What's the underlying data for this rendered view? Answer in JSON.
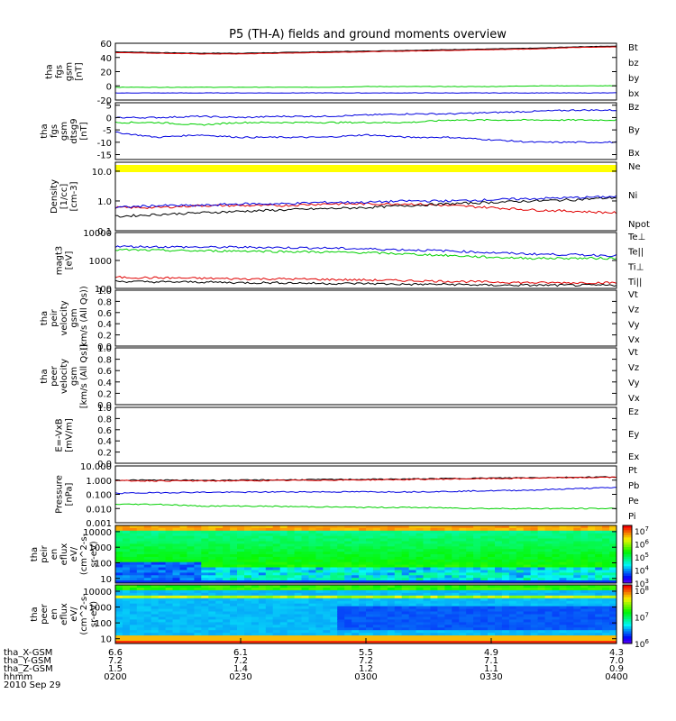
{
  "title": "P5 (TH-A) fields and ground moments overview",
  "colors": {
    "black": "#000000",
    "red": "#e00000",
    "green": "#00d000",
    "blue": "#0000e0",
    "yellow": "#ffff00",
    "white": "#ffffff"
  },
  "time_axis": {
    "ticks": [
      "0200",
      "0230",
      "0300",
      "0330",
      "0400"
    ],
    "rows": [
      {
        "label": "tha_X-GSM",
        "values": [
          "6.6",
          "6.1",
          "5.5",
          "4.9",
          "4.3"
        ]
      },
      {
        "label": "tha_Y-GSM",
        "values": [
          "7.2",
          "7.2",
          "7.2",
          "7.1",
          "7.0"
        ]
      },
      {
        "label": "tha_Z-GSM",
        "values": [
          "1.5",
          "1.4",
          "1.2",
          "1.1",
          "0.9"
        ]
      },
      {
        "label": "hhmm",
        "values": [
          "0200",
          "0230",
          "0300",
          "0330",
          "0400"
        ]
      }
    ],
    "date": "2010 Sep 29"
  },
  "chart_data": [
    {
      "type": "line",
      "ylabel": [
        "tha",
        "fgs",
        "gsm",
        "[nT]"
      ],
      "ylim": [
        -20,
        60
      ],
      "yticks": [
        "60",
        "40",
        "20",
        "0",
        "-20"
      ],
      "x": [
        0,
        10,
        20,
        30,
        40,
        50,
        60,
        70,
        80,
        90,
        100,
        110,
        120
      ],
      "series": [
        {
          "name": "Bt",
          "color": "#000000",
          "values": [
            48,
            47,
            46,
            46,
            47,
            48,
            49,
            50,
            51,
            52,
            53,
            55,
            56
          ]
        },
        {
          "name": "bz",
          "color": "#e00000",
          "values": [
            47,
            46,
            45,
            45,
            46,
            47,
            48,
            49,
            50,
            51,
            52,
            54,
            55
          ]
        },
        {
          "name": "by",
          "color": "#00d000",
          "values": [
            -2,
            -2,
            -2,
            -2,
            -2,
            -2,
            -1,
            -1,
            -1,
            -1,
            0,
            0,
            0
          ]
        },
        {
          "name": "bx",
          "color": "#0000e0",
          "values": [
            -10,
            -10,
            -10,
            -10,
            -10,
            -10,
            -10,
            -10,
            -10,
            -10,
            -10,
            -10,
            -10
          ]
        }
      ]
    },
    {
      "type": "line",
      "ylabel": [
        "tha",
        "fgs",
        "gsm",
        "dtsg9",
        "[nT]"
      ],
      "ylim": [
        -17,
        6
      ],
      "yticks": [
        "5",
        "0",
        "-5",
        "-10",
        "-15"
      ],
      "x": [
        0,
        10,
        20,
        30,
        40,
        50,
        60,
        70,
        80,
        90,
        100,
        110,
        120
      ],
      "series": [
        {
          "name": "Bz",
          "color": "#0000e0",
          "values": [
            0,
            0,
            0.5,
            0,
            0.5,
            0.5,
            1,
            1.5,
            1.5,
            2,
            2.5,
            3,
            3
          ]
        },
        {
          "name": "By",
          "color": "#00d000",
          "values": [
            -2,
            -2,
            -3,
            -2,
            -2,
            -2,
            -2,
            -2,
            -1,
            -1,
            -1,
            -1,
            -1
          ]
        },
        {
          "name": "Bx",
          "color": "#0000e0",
          "values": [
            -6,
            -8,
            -7,
            -8,
            -8,
            -8,
            -7,
            -8,
            -8,
            -9,
            -10,
            -10,
            -10
          ]
        }
      ]
    },
    {
      "type": "line",
      "ylabel": [
        "Density",
        "[1/cc]",
        "[cm-3]"
      ],
      "scale": "log",
      "ylim": [
        0.1,
        20
      ],
      "yticks": [
        "10.0",
        "1.0",
        "0.1"
      ],
      "x": [
        0,
        10,
        20,
        30,
        40,
        50,
        60,
        70,
        80,
        90,
        100,
        110,
        120
      ],
      "series": [
        {
          "name": "Ne",
          "color": "#e00000",
          "values": [
            0.6,
            0.6,
            0.7,
            0.7,
            0.7,
            0.8,
            0.8,
            0.8,
            0.7,
            0.6,
            0.5,
            0.45,
            0.4
          ]
        },
        {
          "name": "Ni",
          "color": "#000000",
          "values": [
            0.3,
            0.35,
            0.4,
            0.45,
            0.5,
            0.55,
            0.6,
            0.7,
            0.8,
            0.9,
            1.0,
            1.1,
            1.3
          ]
        },
        {
          "name": "Npot",
          "color": "#0000e0",
          "values": [
            0.6,
            0.7,
            0.7,
            0.8,
            0.8,
            0.9,
            0.9,
            1.0,
            1.0,
            1.1,
            1.2,
            1.3,
            1.4
          ]
        }
      ]
    },
    {
      "type": "line",
      "ylabel": [
        "magt3",
        "[eV]"
      ],
      "scale": "log",
      "ylim": [
        100,
        10000
      ],
      "yticks": [
        "10000",
        "1000",
        "100"
      ],
      "x": [
        0,
        10,
        20,
        30,
        40,
        50,
        60,
        70,
        80,
        90,
        100,
        110,
        120
      ],
      "series": [
        {
          "name": "Te⊥",
          "color": "#e00000",
          "values": [
            250,
            240,
            230,
            220,
            220,
            210,
            200,
            190,
            180,
            170,
            160,
            160,
            160
          ]
        },
        {
          "name": "Te||",
          "color": "#000000",
          "values": [
            180,
            170,
            170,
            160,
            160,
            150,
            150,
            140,
            140,
            130,
            130,
            130,
            130
          ]
        },
        {
          "name": "Ti⊥",
          "color": "#0000e0",
          "values": [
            3200,
            3100,
            3000,
            3000,
            2900,
            2800,
            2600,
            2400,
            2200,
            1900,
            1700,
            1600,
            1500
          ]
        },
        {
          "name": "Ti||",
          "color": "#00d000",
          "values": [
            2400,
            2300,
            2200,
            2200,
            2100,
            2000,
            1900,
            1700,
            1500,
            1300,
            1200,
            1200,
            1200
          ]
        }
      ]
    },
    {
      "type": "line",
      "ylabel": [
        "tha",
        "peir",
        "velocity",
        "gsm",
        "(km/s (All Qs))"
      ],
      "ylim": [
        0,
        1
      ],
      "yticks": [
        "1.0",
        "0.8",
        "0.6",
        "0.4",
        "0.2",
        "0.0"
      ],
      "series": [
        {
          "name": "Vt",
          "color": "#000000"
        },
        {
          "name": "Vz",
          "color": "#e00000"
        },
        {
          "name": "Vy",
          "color": "#00d000"
        },
        {
          "name": "Vx",
          "color": "#0000e0"
        }
      ]
    },
    {
      "type": "line",
      "ylabel": [
        "tha",
        "peer",
        "velocity",
        "gsm",
        "[km/s (All Qs)]"
      ],
      "ylim": [
        0,
        1
      ],
      "yticks": [
        "1.0",
        "0.8",
        "0.6",
        "0.4",
        "0.2",
        "0.0"
      ],
      "series": [
        {
          "name": "Vt",
          "color": "#000000"
        },
        {
          "name": "Vz",
          "color": "#e00000"
        },
        {
          "name": "Vy",
          "color": "#00d000"
        },
        {
          "name": "Vx",
          "color": "#0000e0"
        }
      ]
    },
    {
      "type": "line",
      "ylabel": [
        "E=-VxB",
        "[mV/m]"
      ],
      "ylim": [
        0,
        1
      ],
      "yticks": [
        "1.0",
        "0.8",
        "0.6",
        "0.4",
        "0.2",
        "0.0"
      ],
      "series": [
        {
          "name": "Ez",
          "color": "#e00000"
        },
        {
          "name": "Ey",
          "color": "#00d000"
        },
        {
          "name": "Ex",
          "color": "#0000e0"
        }
      ]
    },
    {
      "type": "line",
      "ylabel": [
        "Pressure",
        "[nPa]"
      ],
      "scale": "log",
      "ylim": [
        0.001,
        10
      ],
      "yticks": [
        "10.000",
        "1.000",
        "0.100",
        "0.010",
        "0.001"
      ],
      "x": [
        0,
        10,
        20,
        30,
        40,
        50,
        60,
        70,
        80,
        90,
        100,
        110,
        120
      ],
      "series": [
        {
          "name": "Pt",
          "color": "#000000",
          "values": [
            1.0,
            1.0,
            0.98,
            1.0,
            1.05,
            1.1,
            1.15,
            1.2,
            1.3,
            1.4,
            1.5,
            1.6,
            1.7
          ]
        },
        {
          "name": "Pb",
          "color": "#e00000",
          "values": [
            0.9,
            0.9,
            0.88,
            0.9,
            0.95,
            1.0,
            1.05,
            1.1,
            1.2,
            1.3,
            1.4,
            1.5,
            1.6
          ]
        },
        {
          "name": "Pe",
          "color": "#0000e0",
          "values": [
            0.12,
            0.13,
            0.14,
            0.14,
            0.15,
            0.15,
            0.15,
            0.15,
            0.16,
            0.18,
            0.2,
            0.25,
            0.3
          ]
        },
        {
          "name": "Pi",
          "color": "#00d000",
          "values": [
            0.02,
            0.02,
            0.015,
            0.015,
            0.014,
            0.013,
            0.012,
            0.012,
            0.011,
            0.01,
            0.01,
            0.01,
            0.01
          ]
        }
      ]
    },
    {
      "type": "heatmap",
      "ylabel": [
        "tha",
        "peir",
        "en",
        "eflux",
        "eV/",
        "(cm^2-s-",
        "sr-eV)"
      ],
      "scale": "log",
      "ylim": [
        5,
        25000
      ],
      "yticks": [
        "10000",
        "1000",
        "100",
        "10"
      ],
      "colorbar": {
        "ticks": [
          "10^7",
          "10^6",
          "10^5",
          "10^4",
          "10^3"
        ]
      }
    },
    {
      "type": "heatmap",
      "ylabel": [
        "tha",
        "peer",
        "en",
        "eflux",
        "eV/",
        "(cm^2-s-",
        "sr-eV)"
      ],
      "scale": "log",
      "ylim": [
        5,
        25000
      ],
      "yticks": [
        "10000",
        "1000",
        "100",
        "10"
      ],
      "colorbar": {
        "ticks": [
          "10^8",
          "10^7",
          "10^6"
        ]
      }
    }
  ]
}
